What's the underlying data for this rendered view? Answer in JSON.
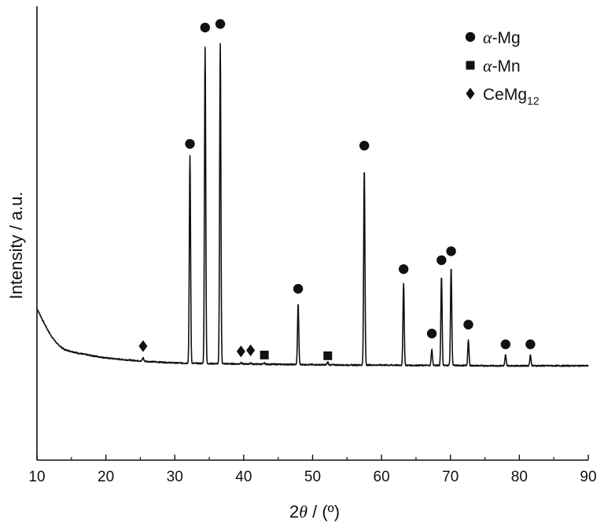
{
  "chart_data": {
    "type": "line",
    "xlabel_main": "2",
    "xlabel_theta": "θ",
    "xlabel_unit": " / (º)",
    "ylabel": "Intensity / a.u.",
    "xlim": [
      10,
      90
    ],
    "ylim": [
      0,
      100
    ],
    "xticks": [
      "10",
      "20",
      "30",
      "40",
      "50",
      "60",
      "70",
      "80",
      "90"
    ],
    "y_ticks_visible": false,
    "legend": {
      "placement": "top-right",
      "entries": [
        {
          "marker": "circle",
          "prefix": "α",
          "suffix": "-Mg",
          "sub": ""
        },
        {
          "marker": "square",
          "prefix": "α",
          "suffix": "-Mn",
          "sub": ""
        },
        {
          "marker": "diamond",
          "prefix": "",
          "suffix": "CeMg",
          "sub": "12"
        }
      ]
    },
    "baseline": [
      [
        10,
        36.0
      ],
      [
        11,
        32.0
      ],
      [
        12,
        28.5
      ],
      [
        13,
        26.0
      ],
      [
        14,
        24.5
      ],
      [
        16,
        23.5
      ],
      [
        18,
        22.8
      ],
      [
        20,
        22.2
      ],
      [
        22,
        21.8
      ],
      [
        24,
        21.5
      ],
      [
        26,
        21.2
      ],
      [
        28,
        21.0
      ],
      [
        30,
        20.8
      ],
      [
        35,
        20.6
      ],
      [
        40,
        20.5
      ],
      [
        45,
        20.4
      ],
      [
        50,
        20.3
      ],
      [
        55,
        20.2
      ],
      [
        60,
        20.2
      ],
      [
        65,
        20.1
      ],
      [
        70,
        20.1
      ],
      [
        75,
        20.0
      ],
      [
        80,
        20.0
      ],
      [
        85,
        20.0
      ],
      [
        90,
        20.0
      ]
    ],
    "peaks": [
      {
        "x": 25.4,
        "height": 1.0,
        "phase": "CeMg12"
      },
      {
        "x": 32.2,
        "height": 58.0,
        "phase": "α-Mg"
      },
      {
        "x": 34.4,
        "height": 88.5,
        "phase": "α-Mg"
      },
      {
        "x": 36.6,
        "height": 89.5,
        "phase": "α-Mg"
      },
      {
        "x": 39.6,
        "height": 0.4,
        "phase": "CeMg12"
      },
      {
        "x": 41.0,
        "height": 0.4,
        "phase": "CeMg12"
      },
      {
        "x": 43.0,
        "height": 0.3,
        "phase": "α-Mn"
      },
      {
        "x": 47.9,
        "height": 17.0,
        "phase": "α-Mg"
      },
      {
        "x": 52.2,
        "height": 0.8,
        "phase": "α-Mn"
      },
      {
        "x": 57.5,
        "height": 55.0,
        "phase": "α-Mg"
      },
      {
        "x": 63.2,
        "height": 23.0,
        "phase": "α-Mg"
      },
      {
        "x": 67.3,
        "height": 4.5,
        "phase": "α-Mg"
      },
      {
        "x": 68.7,
        "height": 25.0,
        "phase": "α-Mg"
      },
      {
        "x": 70.1,
        "height": 27.5,
        "phase": "α-Mg"
      },
      {
        "x": 72.6,
        "height": 7.0,
        "phase": "α-Mg"
      },
      {
        "x": 78.0,
        "height": 3.0,
        "phase": "α-Mg"
      },
      {
        "x": 81.6,
        "height": 3.0,
        "phase": "α-Mg"
      }
    ],
    "phase_markers": [
      {
        "phase": "CeMg12",
        "marker": "diamond",
        "x": 25.4,
        "y": 25.5
      },
      {
        "phase": "α-Mg",
        "marker": "circle",
        "x": 32.2,
        "y": 82.0
      },
      {
        "phase": "α-Mg",
        "marker": "circle",
        "x": 34.4,
        "y": 114.5
      },
      {
        "phase": "α-Mg",
        "marker": "circle",
        "x": 36.6,
        "y": 115.5
      },
      {
        "phase": "CeMg12",
        "marker": "diamond",
        "x": 39.6,
        "y": 24.0
      },
      {
        "phase": "CeMg12",
        "marker": "diamond",
        "x": 41.0,
        "y": 24.3
      },
      {
        "phase": "α-Mn",
        "marker": "square",
        "x": 43.0,
        "y": 23.0
      },
      {
        "phase": "α-Mg",
        "marker": "circle",
        "x": 47.9,
        "y": 41.5
      },
      {
        "phase": "α-Mn",
        "marker": "square",
        "x": 52.2,
        "y": 22.8
      },
      {
        "phase": "α-Mg",
        "marker": "circle",
        "x": 57.5,
        "y": 81.5
      },
      {
        "phase": "α-Mg",
        "marker": "circle",
        "x": 63.2,
        "y": 47.0
      },
      {
        "phase": "α-Mg",
        "marker": "circle",
        "x": 67.3,
        "y": 29.0
      },
      {
        "phase": "α-Mg",
        "marker": "circle",
        "x": 68.7,
        "y": 49.5
      },
      {
        "phase": "α-Mg",
        "marker": "circle",
        "x": 70.1,
        "y": 52.0
      },
      {
        "phase": "α-Mg",
        "marker": "circle",
        "x": 72.6,
        "y": 31.5
      },
      {
        "phase": "α-Mg",
        "marker": "circle",
        "x": 78.0,
        "y": 26.0
      },
      {
        "phase": "α-Mg",
        "marker": "circle",
        "x": 81.6,
        "y": 26.0
      }
    ],
    "colors": {
      "line": "#111111",
      "marker": "#111111",
      "axis": "#111111"
    }
  }
}
